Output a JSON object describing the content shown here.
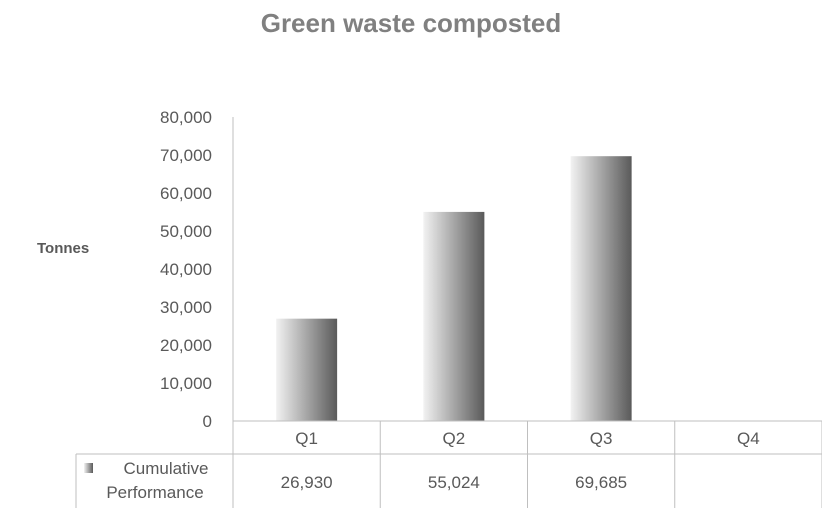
{
  "chart_data": {
    "type": "bar",
    "title": "Green waste composted",
    "ylabel": "Tonnes",
    "xlabel": "",
    "categories": [
      "Q1",
      "Q2",
      "Q3",
      "Q4"
    ],
    "series": [
      {
        "name": "Cumulative Performance",
        "values": [
          26930,
          55024,
          69685,
          null
        ],
        "value_labels": [
          "26,930",
          "55,024",
          "69,685",
          ""
        ]
      }
    ],
    "ylim": [
      0,
      80000
    ],
    "y_ticks": [
      0,
      10000,
      20000,
      30000,
      40000,
      50000,
      60000,
      70000,
      80000
    ],
    "y_tick_labels": [
      "0",
      "10,000",
      "20,000",
      "30,000",
      "40,000",
      "50,000",
      "60,000",
      "70,000",
      "80,000"
    ],
    "grid": false,
    "legend_placement": "data-table",
    "bar_gradient": [
      "#f2f2f2",
      "#5a5a5a"
    ]
  }
}
